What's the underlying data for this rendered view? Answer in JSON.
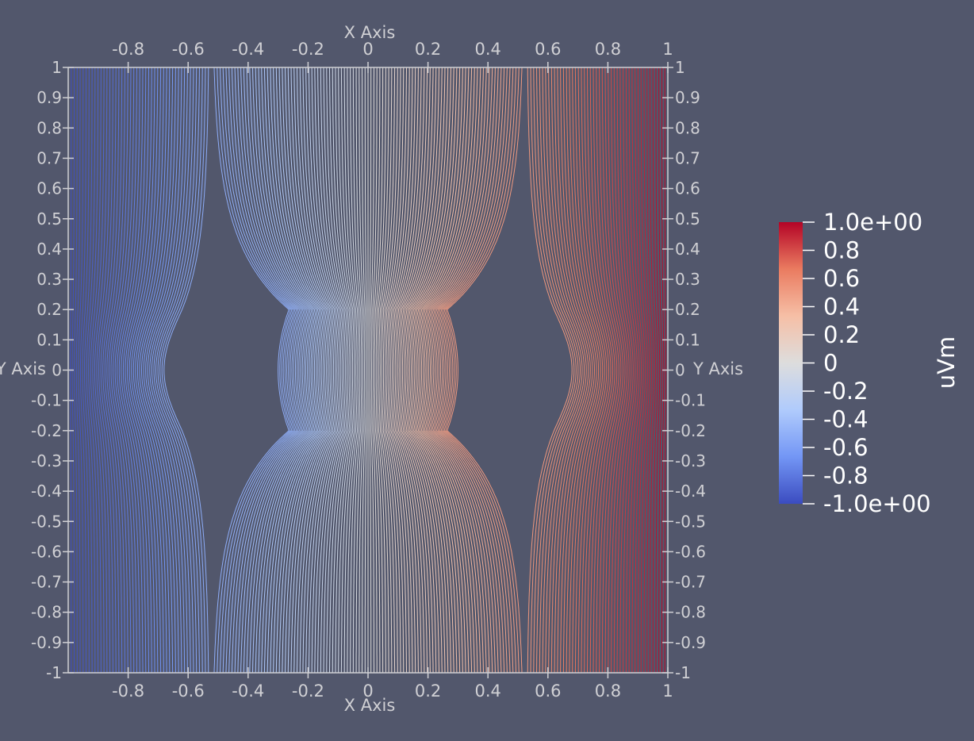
{
  "chart_data": {
    "type": "contour",
    "x_axis_title": "X Axis",
    "y_axis_title": "Y Axis",
    "x_ticks": [
      -0.8,
      -0.6,
      -0.4,
      -0.2,
      0,
      0.2,
      0.4,
      0.6,
      0.8,
      1
    ],
    "x_tick_labels": [
      "-0.8",
      "-0.6",
      "-0.4",
      "-0.2",
      "0",
      "0.2",
      "0.4",
      "0.6",
      "0.8",
      "1"
    ],
    "y_ticks": [
      1,
      0.9,
      0.8,
      0.7,
      0.6,
      0.5,
      0.4,
      0.3,
      0.2,
      0.1,
      0,
      -0.1,
      -0.2,
      -0.3,
      -0.4,
      -0.5,
      -0.6,
      -0.7,
      -0.8,
      -0.9,
      -1
    ],
    "y_tick_labels": [
      "1",
      "0.9",
      "0.8",
      "0.7",
      "0.6",
      "0.5",
      "0.4",
      "0.3",
      "0.2",
      "0.1",
      "0",
      "-0.1",
      "-0.2",
      "-0.3",
      "-0.4",
      "-0.5",
      "-0.6",
      "-0.7",
      "-0.8",
      "-0.9",
      "-1"
    ],
    "xlim": [
      -1,
      1
    ],
    "ylim": [
      -1,
      1
    ],
    "field": "uVm",
    "contour_range": [
      -1.0,
      1.0
    ],
    "contour_count": 201,
    "inclusion": {
      "x_range": [
        -0.3,
        0.3
      ],
      "y_range": [
        -0.2,
        0.2
      ]
    },
    "colormap": [
      "#3b4cc0",
      "#7396f5",
      "#b0cbfc",
      "#dddddd",
      "#f6bfa6",
      "#ea7b60",
      "#b40426"
    ],
    "legend": {
      "title": "uVm",
      "tick_labels": [
        "1.0e+00",
        "0.8",
        "0.6",
        "0.4",
        "0.2",
        "0",
        "-0.2",
        "-0.4",
        "-0.6",
        "-0.8",
        "-1.0e+00"
      ],
      "tick_values": [
        1,
        0.8,
        0.6,
        0.4,
        0.2,
        0,
        -0.2,
        -0.4,
        -0.6,
        -0.8,
        -1
      ]
    }
  },
  "colors": {
    "background": "#52576c",
    "axis": "#d0d0d4",
    "legend_text": "#ffffff"
  }
}
